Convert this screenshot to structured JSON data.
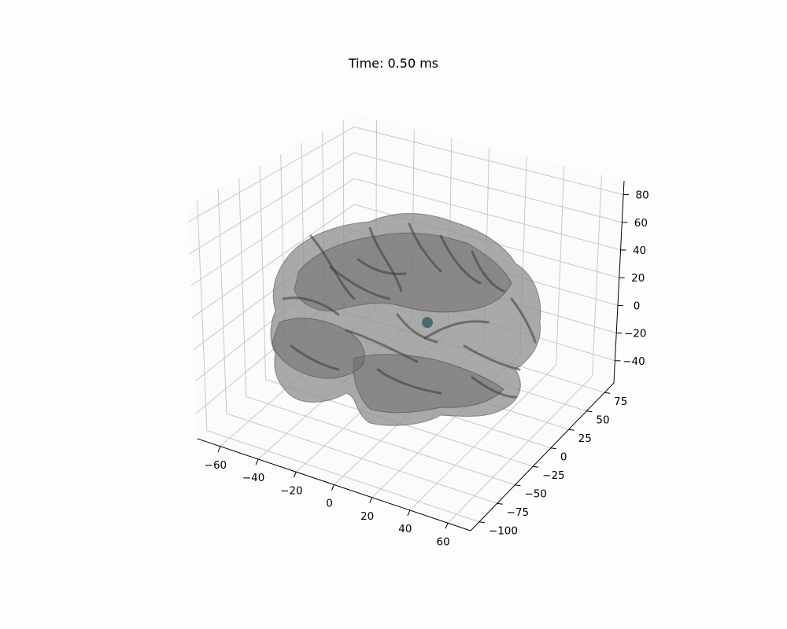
{
  "chart_data": {
    "type": "scatter",
    "projection": "3d",
    "title": "Time: 0.50 ms",
    "xlabel": "",
    "ylabel": "",
    "zlabel": "",
    "grid": true,
    "x_ticks": [
      -60,
      -40,
      -20,
      0,
      20,
      40,
      60
    ],
    "y_ticks": [
      75,
      50,
      25,
      0,
      -25,
      -50,
      -75,
      -100
    ],
    "z_ticks": [
      80,
      60,
      40,
      20,
      0,
      -20,
      -40
    ],
    "colors": {
      "surface": "#6b6b6b",
      "surface_dark": "#3c3c3c",
      "source": "#3d5f67",
      "grid": "#c8c8c8",
      "pane": "#fbfbfb"
    },
    "series": [
      {
        "values": [
          {
            "x": 5,
            "y": 0,
            "z": 0
          }
        ]
      }
    ]
  }
}
